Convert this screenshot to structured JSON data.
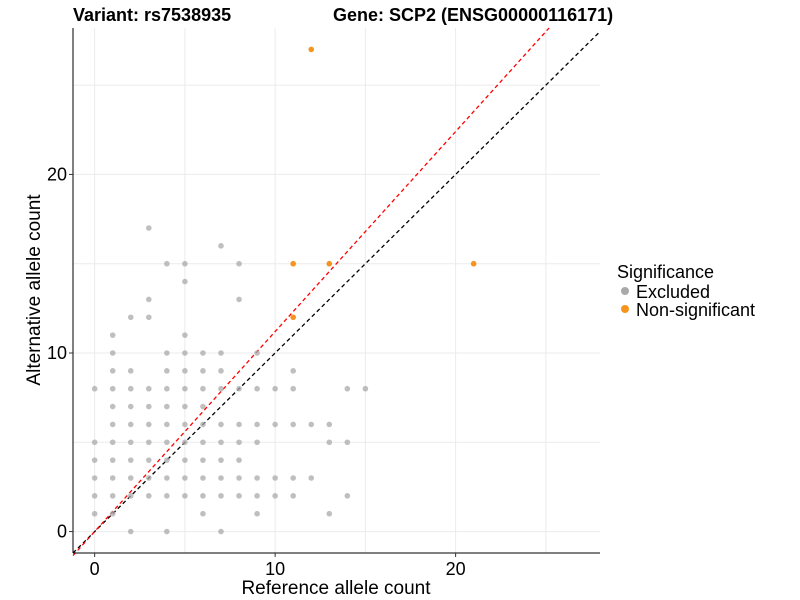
{
  "chart_data": {
    "type": "scatter",
    "title_left": "Variant: rs7538935",
    "title_right": "Gene: SCP2 (ENSG00000116171)",
    "xlabel": "Reference allele count",
    "ylabel": "Alternative allele count",
    "xlim": [
      -1.2,
      28
    ],
    "ylim": [
      -1.2,
      28.2
    ],
    "x_ticks": [
      0,
      10,
      20
    ],
    "y_ticks": [
      0,
      10,
      20
    ],
    "grid": true,
    "legend": {
      "title": "Significance",
      "position": "right",
      "entries": [
        {
          "label": "Excluded",
          "color": "#a9a9a9"
        },
        {
          "label": "Non-significant",
          "color": "#f7941d"
        }
      ]
    },
    "reference_lines": [
      {
        "name": "black",
        "slope": 1.0,
        "intercept": 0,
        "color": "#000000",
        "dashed": true
      },
      {
        "name": "red",
        "slope": 1.12,
        "intercept": 0,
        "color": "#ff0000",
        "dashed": true
      }
    ],
    "series": [
      {
        "name": "Excluded",
        "color": "#a9a9a9",
        "points": [
          [
            0,
            1
          ],
          [
            0,
            2
          ],
          [
            0,
            3
          ],
          [
            0,
            4
          ],
          [
            0,
            5
          ],
          [
            0,
            8
          ],
          [
            1,
            1
          ],
          [
            1,
            2
          ],
          [
            1,
            3
          ],
          [
            1,
            4
          ],
          [
            1,
            5
          ],
          [
            1,
            6
          ],
          [
            1,
            7
          ],
          [
            1,
            8
          ],
          [
            1,
            9
          ],
          [
            1,
            10
          ],
          [
            1,
            11
          ],
          [
            2,
            0
          ],
          [
            2,
            2
          ],
          [
            2,
            3
          ],
          [
            2,
            4
          ],
          [
            2,
            5
          ],
          [
            2,
            6
          ],
          [
            2,
            7
          ],
          [
            2,
            8
          ],
          [
            2,
            9
          ],
          [
            2,
            12
          ],
          [
            3,
            2
          ],
          [
            3,
            3
          ],
          [
            3,
            4
          ],
          [
            3,
            5
          ],
          [
            3,
            6
          ],
          [
            3,
            7
          ],
          [
            3,
            8
          ],
          [
            3,
            12
          ],
          [
            3,
            13
          ],
          [
            3,
            17
          ],
          [
            4,
            0
          ],
          [
            4,
            2
          ],
          [
            4,
            3
          ],
          [
            4,
            4
          ],
          [
            4,
            5
          ],
          [
            4,
            6
          ],
          [
            4,
            7
          ],
          [
            4,
            8
          ],
          [
            4,
            9
          ],
          [
            4,
            10
          ],
          [
            4,
            15
          ],
          [
            5,
            2
          ],
          [
            5,
            3
          ],
          [
            5,
            4
          ],
          [
            5,
            5
          ],
          [
            5,
            6
          ],
          [
            5,
            7
          ],
          [
            5,
            8
          ],
          [
            5,
            9
          ],
          [
            5,
            10
          ],
          [
            5,
            11
          ],
          [
            5,
            14
          ],
          [
            5,
            15
          ],
          [
            6,
            1
          ],
          [
            6,
            2
          ],
          [
            6,
            3
          ],
          [
            6,
            4
          ],
          [
            6,
            5
          ],
          [
            6,
            6
          ],
          [
            6,
            7
          ],
          [
            6,
            8
          ],
          [
            6,
            9
          ],
          [
            6,
            10
          ],
          [
            7,
            0
          ],
          [
            7,
            2
          ],
          [
            7,
            3
          ],
          [
            7,
            4
          ],
          [
            7,
            5
          ],
          [
            7,
            6
          ],
          [
            7,
            8
          ],
          [
            7,
            9
          ],
          [
            7,
            10
          ],
          [
            7,
            16
          ],
          [
            8,
            2
          ],
          [
            8,
            3
          ],
          [
            8,
            4
          ],
          [
            8,
            5
          ],
          [
            8,
            6
          ],
          [
            8,
            8
          ],
          [
            8,
            13
          ],
          [
            8,
            15
          ],
          [
            9,
            1
          ],
          [
            9,
            2
          ],
          [
            9,
            3
          ],
          [
            9,
            5
          ],
          [
            9,
            6
          ],
          [
            9,
            8
          ],
          [
            9,
            10
          ],
          [
            10,
            2
          ],
          [
            10,
            3
          ],
          [
            10,
            6
          ],
          [
            10,
            8
          ],
          [
            11,
            2
          ],
          [
            11,
            3
          ],
          [
            11,
            6
          ],
          [
            11,
            8
          ],
          [
            11,
            9
          ],
          [
            12,
            3
          ],
          [
            12,
            6
          ],
          [
            13,
            1
          ],
          [
            13,
            5
          ],
          [
            13,
            6
          ],
          [
            14,
            2
          ],
          [
            14,
            5
          ],
          [
            14,
            8
          ],
          [
            15,
            8
          ]
        ]
      },
      {
        "name": "Non-significant",
        "color": "#f7941d",
        "points": [
          [
            11,
            12
          ],
          [
            11,
            15
          ],
          [
            12,
            27
          ],
          [
            13,
            15
          ],
          [
            21,
            15
          ]
        ]
      }
    ]
  }
}
